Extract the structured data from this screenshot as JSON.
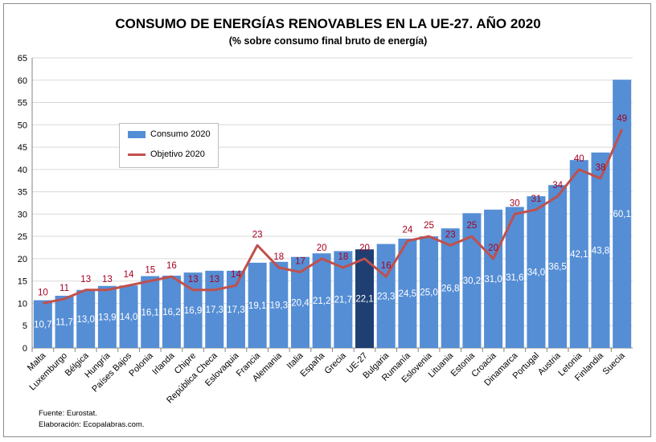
{
  "chart_data": {
    "type": "bar",
    "title": "CONSUMO DE ENERGÍAS RENOVABLES EN LA UE-27. AÑO 2020",
    "subtitle": "(% sobre consumo final bruto de energía)",
    "categories": [
      "Malta",
      "Luxemburgo",
      "Bélgica",
      "Hungría",
      "Países Bajos",
      "Polonia",
      "Irlanda",
      "Chipre",
      "República Checa",
      "Eslovaquia",
      "Francia",
      "Alemania",
      "Italia",
      "España",
      "Grecia",
      "UE-27",
      "Bulgaria",
      "Rumanía",
      "Eslovenia",
      "Lituania",
      "Estonia",
      "Croacia",
      "Dinamarca",
      "Portugal",
      "Austria",
      "Letonia",
      "Finlandia",
      "Suecia"
    ],
    "series": [
      {
        "name": "Consumo 2020",
        "type": "bar",
        "color": "#558ed5",
        "highlight": {
          "category": "UE-27",
          "color": "#1f3f73"
        },
        "values": [
          10.7,
          11.7,
          13.0,
          13.9,
          14.0,
          16.1,
          16.2,
          16.9,
          17.3,
          17.3,
          19.1,
          19.3,
          20.4,
          21.2,
          21.7,
          22.1,
          23.3,
          24.5,
          25.0,
          26.8,
          30.2,
          31.0,
          31.6,
          34.0,
          36.5,
          42.1,
          43.8,
          60.1
        ],
        "labels": [
          "10,7",
          "11,7",
          "13,0",
          "13,9",
          "14,0",
          "16,1",
          "16,2",
          "16,9",
          "17,3",
          "17,3",
          "19,1",
          "19,3",
          "20,4",
          "21,2",
          "21,7",
          "22,1",
          "23,3",
          "24,5",
          "25,0",
          "26,8",
          "30,2",
          "31,0",
          "31,6",
          "34,0",
          "36,5",
          "42,1",
          "43,8",
          "60,1"
        ]
      },
      {
        "name": "Objetivo 2020",
        "type": "line",
        "color": "#c0504d",
        "label_color": "#a50021",
        "values": [
          10,
          11,
          13,
          13,
          14,
          15,
          16,
          13,
          13,
          14,
          23,
          18,
          17,
          20,
          18,
          20,
          16,
          24,
          25,
          23,
          25,
          20,
          30,
          31,
          34,
          40,
          38,
          49
        ]
      }
    ],
    "ylim": [
      0,
      65
    ],
    "yticks": [
      0,
      5,
      10,
      15,
      20,
      25,
      30,
      35,
      40,
      45,
      50,
      55,
      60,
      65
    ],
    "grid": true,
    "legend_placement": "upper-left inside"
  },
  "footer": {
    "source": "Fuente: Eurostat.",
    "credit": "Elaboración: Ecopalabras.com."
  }
}
